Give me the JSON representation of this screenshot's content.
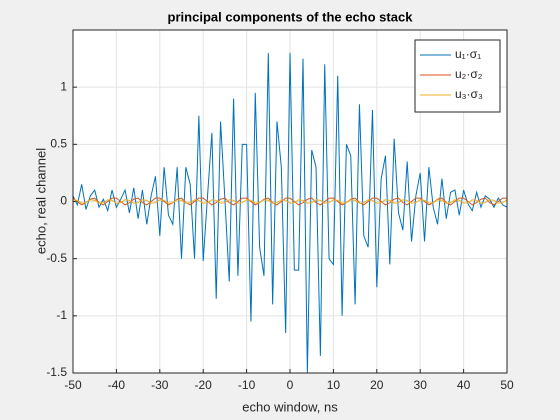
{
  "chart_data": {
    "type": "line",
    "title": "principal components of the echo stack",
    "x_label": "echo window, ns",
    "y_label": "echo, real channel",
    "x": [
      -50,
      -49,
      -48,
      -47,
      -46,
      -45,
      -44,
      -43,
      -42,
      -41,
      -40,
      -39,
      -38,
      -37,
      -36,
      -35,
      -34,
      -33,
      -32,
      -31,
      -30,
      -29,
      -28,
      -27,
      -26,
      -25,
      -24,
      -23,
      -22,
      -21,
      -20,
      -19,
      -18,
      -17,
      -16,
      -15,
      -14,
      -13,
      -12,
      -11,
      -10,
      -9,
      -8,
      -7,
      -6,
      -5,
      -4,
      -3,
      -2,
      -1,
      0,
      1,
      2,
      3,
      4,
      5,
      6,
      7,
      8,
      9,
      10,
      11,
      12,
      13,
      14,
      15,
      16,
      17,
      18,
      19,
      20,
      21,
      22,
      23,
      24,
      25,
      26,
      27,
      28,
      29,
      30,
      31,
      32,
      33,
      34,
      35,
      36,
      37,
      38,
      39,
      40,
      41,
      42,
      43,
      44,
      45,
      46,
      47,
      48,
      49,
      50
    ],
    "series": [
      {
        "name": "u₁·σ₁",
        "color": "#0072bd",
        "values": [
          0.05,
          -0.03,
          0.15,
          -0.07,
          0.05,
          0.1,
          -0.05,
          0.02,
          -0.08,
          0.1,
          -0.05,
          0.02,
          0.1,
          -0.1,
          0.12,
          -0.15,
          0.1,
          -0.2,
          0.05,
          0.22,
          -0.3,
          0.3,
          -0.12,
          -0.2,
          0.3,
          -0.5,
          0.3,
          0.15,
          -0.5,
          0.75,
          -0.52,
          0.05,
          0.6,
          -0.85,
          0.7,
          0.02,
          -0.7,
          0.9,
          -0.65,
          0.5,
          0.5,
          -1.05,
          0.95,
          -0.4,
          -0.65,
          1.3,
          -0.9,
          0.7,
          0.3,
          -1.15,
          1.3,
          -0.6,
          -0.6,
          1.25,
          -1.5,
          0.45,
          0.3,
          -1.35,
          1.2,
          -0.5,
          -0.55,
          1.1,
          -1.0,
          0.5,
          0.4,
          -0.9,
          0.85,
          -0.3,
          -0.4,
          0.8,
          -0.75,
          0.2,
          0.4,
          -0.55,
          0.55,
          -0.1,
          -0.25,
          0.35,
          -0.35,
          0.05,
          0.25,
          -0.35,
          0.3,
          -0.05,
          -0.2,
          0.2,
          -0.15,
          0.08,
          0.1,
          -0.12,
          0.1,
          -0.02,
          -0.08,
          0.08,
          -0.05,
          0.05,
          0.02,
          -0.05,
          0.03,
          -0.03,
          -0.05
        ]
      },
      {
        "name": "u₂·σ₂",
        "color": "#d95319",
        "values": [
          0.03,
          0.0,
          -0.03,
          -0.01,
          0.02,
          0.03,
          -0.01,
          -0.03,
          0.0,
          0.03,
          0.03,
          0.0,
          -0.03,
          -0.01,
          0.02,
          0.03,
          -0.01,
          -0.03,
          0.0,
          0.03,
          0.03,
          0.0,
          -0.03,
          -0.01,
          0.02,
          0.03,
          -0.01,
          -0.03,
          0.0,
          0.03,
          0.03,
          0.0,
          -0.03,
          -0.01,
          0.02,
          0.03,
          -0.01,
          -0.03,
          0.0,
          0.03,
          0.03,
          0.0,
          -0.03,
          -0.01,
          0.02,
          0.03,
          -0.01,
          -0.03,
          0.0,
          0.03,
          0.03,
          0.0,
          -0.03,
          -0.01,
          0.02,
          0.03,
          -0.01,
          -0.03,
          0.0,
          0.03,
          0.03,
          0.0,
          -0.03,
          -0.01,
          0.02,
          0.03,
          -0.01,
          -0.03,
          0.0,
          0.03,
          0.03,
          0.0,
          -0.03,
          -0.01,
          0.02,
          0.03,
          -0.01,
          -0.03,
          0.0,
          0.03,
          0.03,
          0.0,
          -0.03,
          -0.01,
          0.02,
          0.03,
          -0.01,
          -0.03,
          0.0,
          0.03,
          0.03,
          0.0,
          -0.03,
          -0.01,
          0.02,
          0.03,
          -0.01,
          -0.03,
          0.0,
          0.03,
          0.03
        ]
      },
      {
        "name": "u₃·σ₃",
        "color": "#edb120",
        "values": [
          0.015,
          0.01,
          -0.015,
          -0.01,
          0.015,
          0.01,
          -0.015,
          -0.01,
          0.015,
          0.01,
          -0.015,
          -0.01,
          0.015,
          0.01,
          -0.015,
          -0.01,
          0.015,
          0.01,
          -0.015,
          -0.01,
          0.015,
          0.01,
          -0.015,
          -0.01,
          0.015,
          0.01,
          -0.015,
          -0.01,
          0.015,
          0.01,
          -0.015,
          -0.01,
          0.015,
          0.01,
          -0.015,
          -0.01,
          0.015,
          0.01,
          -0.015,
          -0.01,
          0.015,
          0.01,
          -0.015,
          -0.01,
          0.015,
          0.01,
          -0.015,
          -0.01,
          0.015,
          0.01,
          -0.015,
          -0.01,
          0.015,
          0.01,
          -0.015,
          -0.01,
          0.015,
          0.01,
          -0.015,
          -0.01,
          0.015,
          0.01,
          -0.015,
          -0.01,
          0.015,
          0.01,
          -0.015,
          -0.01,
          0.015,
          0.01,
          -0.015,
          -0.01,
          0.015,
          0.01,
          -0.015,
          -0.01,
          0.015,
          0.01,
          -0.015,
          -0.01,
          0.015,
          0.01,
          -0.015,
          -0.01,
          0.015,
          0.01,
          -0.015,
          -0.01,
          0.015,
          0.01,
          -0.015,
          -0.01,
          0.015,
          0.01,
          -0.015,
          -0.01,
          0.015,
          0.01,
          -0.015,
          -0.01,
          0.015
        ]
      }
    ],
    "xlim": [
      -50,
      50
    ],
    "xticks": [
      -50,
      -40,
      -30,
      -20,
      -10,
      0,
      10,
      20,
      30,
      40,
      50
    ],
    "ylim": [
      -1.5,
      1.5
    ],
    "yticks": [
      -1.5,
      -1,
      -0.5,
      0,
      0.5,
      1
    ],
    "grid": true,
    "legend": "northeast"
  }
}
